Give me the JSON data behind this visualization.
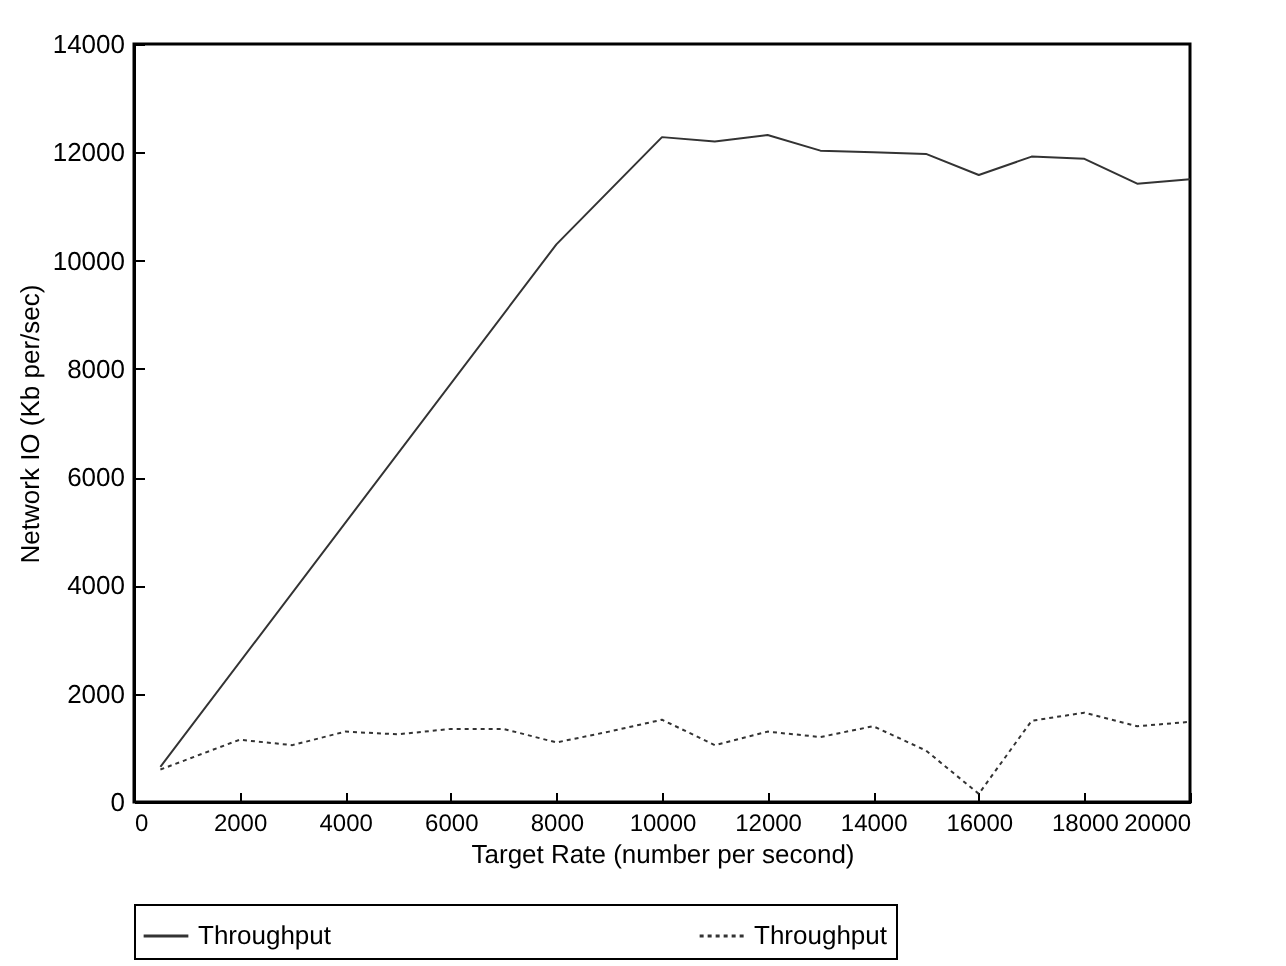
{
  "chart_data": {
    "type": "line",
    "xlabel": "Target Rate (number per second)",
    "ylabel": "Network IO (Kb per/sec)",
    "xlim": [
      0,
      20000
    ],
    "xticks": [
      0,
      2000,
      4000,
      6000,
      8000,
      10000,
      12000,
      14000,
      16000,
      18000,
      20000
    ],
    "ylim": [
      0,
      14000
    ],
    "yticks": [
      0,
      2000,
      4000,
      6000,
      8000,
      10000,
      12000,
      14000
    ],
    "grid": false,
    "legend": "bottom",
    "marker": "none",
    "series": [
      {
        "name": "Throughput",
        "color": "#333333",
        "line_style": "solid",
        "x": [
          500,
          8000,
          10000,
          11000,
          12000,
          13000,
          14000,
          15000,
          16000,
          17000,
          18000,
          19000,
          20000
        ],
        "values": [
          650,
          10300,
          12280,
          12200,
          12320,
          12030,
          12000,
          11970,
          11580,
          11920,
          11880,
          11420,
          11500
        ]
      },
      {
        "name": "Throughput",
        "color": "#333333",
        "line_style": "dotted",
        "x": [
          500,
          2000,
          3000,
          4000,
          5000,
          6000,
          7000,
          8000,
          9000,
          10000,
          11000,
          12000,
          13000,
          14000,
          15000,
          16000,
          17000,
          18000,
          19000,
          20000
        ],
        "values": [
          600,
          1150,
          1050,
          1300,
          1250,
          1350,
          1350,
          1100,
          1300,
          1520,
          1050,
          1300,
          1200,
          1400,
          950,
          150,
          1500,
          1650,
          1400,
          1480
        ]
      }
    ]
  }
}
